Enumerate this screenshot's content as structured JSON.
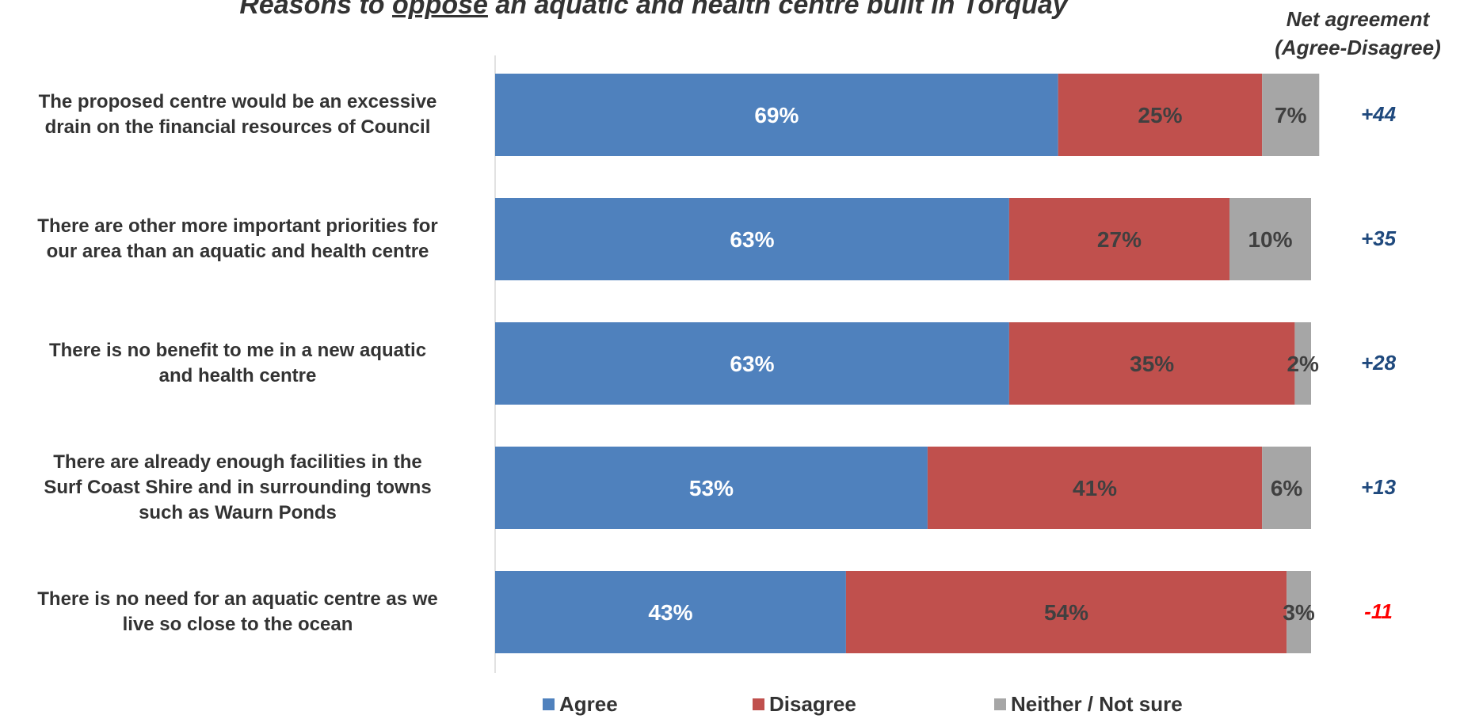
{
  "chart_data": {
    "type": "bar",
    "orientation": "horizontal",
    "stacked": true,
    "title_parts": [
      "Reasons to ",
      "oppose",
      " an aquatic and health centre built in Torquay"
    ],
    "categories": [
      "The proposed centre would be an excessive drain on the financial resources of Council",
      "There are other more important priorities for our area than an aquatic and health centre",
      "There is no benefit to me in a new aquatic and health centre",
      "There are already enough facilities in the Surf Coast Shire and in surrounding towns such as Waurn Ponds",
      "There is no need for an aquatic centre as we live so close to the ocean"
    ],
    "category_lines": [
      [
        "The proposed centre would be an excessive",
        "drain on the financial resources of Council"
      ],
      [
        "There are other more important priorities for",
        "our area than an aquatic and health centre"
      ],
      [
        "There is no benefit to me in a new aquatic",
        "and health centre"
      ],
      [
        "There are already enough facilities in the",
        "Surf Coast Shire and in surrounding towns",
        "such as Waurn Ponds"
      ],
      [
        "There is no need for an aquatic centre as we",
        "live so close to the ocean"
      ]
    ],
    "series": [
      {
        "name": "Agree",
        "color": "#4f81bd",
        "label_color": "#ffffff",
        "values": [
          69,
          63,
          63,
          53,
          43
        ],
        "labels": [
          "69%",
          "63%",
          "63%",
          "53%",
          "43%"
        ]
      },
      {
        "name": "Disagree",
        "color": "#c0504d",
        "label_color": "#404040",
        "values": [
          25,
          27,
          35,
          41,
          54
        ],
        "labels": [
          "25%",
          "27%",
          "35%",
          "41%",
          "54%"
        ]
      },
      {
        "name": "Neither / Not sure",
        "color": "#a6a6a6",
        "label_color": "#404040",
        "values": [
          7,
          10,
          2,
          6,
          3
        ],
        "labels": [
          "7%",
          "10%",
          "2%",
          "6%",
          "3%"
        ]
      }
    ],
    "xlim": [
      0,
      100
    ],
    "grid": false,
    "legend_position": "bottom",
    "net_agreement": {
      "header_lines": [
        "Net agreement",
        "(Agree-Disagree)"
      ],
      "values": [
        "+44",
        "+35",
        "+28",
        "+13",
        "-11"
      ],
      "positive_color": "#1f497d",
      "negative_color": "#ff0000"
    }
  }
}
